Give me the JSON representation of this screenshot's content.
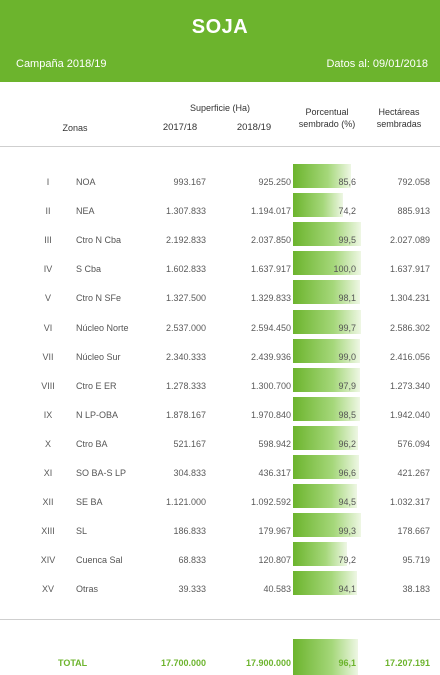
{
  "header": {
    "title": "SOJA",
    "campaign": "Campaña 2018/19",
    "date": "Datos al: 09/01/2018"
  },
  "columns": {
    "zonas": "Zonas",
    "superficie": "Superficie (Ha)",
    "year1": "2017/18",
    "year2": "2018/19",
    "porcentual_1": "Porcentual",
    "porcentual_2": "sembrado (%)",
    "hectareas_1": "Hectáreas",
    "hectareas_2": "sembradas"
  },
  "rows": [
    {
      "num": "I",
      "zona": "NOA",
      "s1718": "993.167",
      "s1819": "925.250",
      "pct": "85,6",
      "pct_value": 85.6,
      "ha": "792.058"
    },
    {
      "num": "II",
      "zona": "NEA",
      "s1718": "1.307.833",
      "s1819": "1.194.017",
      "pct": "74,2",
      "pct_value": 74.2,
      "ha": "885.913"
    },
    {
      "num": "III",
      "zona": "Ctro N Cba",
      "s1718": "2.192.833",
      "s1819": "2.037.850",
      "pct": "99,5",
      "pct_value": 99.5,
      "ha": "2.027.089"
    },
    {
      "num": "IV",
      "zona": "S Cba",
      "s1718": "1.602.833",
      "s1819": "1.637.917",
      "pct": "100,0",
      "pct_value": 100.0,
      "ha": "1.637.917"
    },
    {
      "num": "V",
      "zona": "Ctro N SFe",
      "s1718": "1.327.500",
      "s1819": "1.329.833",
      "pct": "98,1",
      "pct_value": 98.1,
      "ha": "1.304.231"
    },
    {
      "num": "VI",
      "zona": "Núcleo Norte",
      "s1718": "2.537.000",
      "s1819": "2.594.450",
      "pct": "99,7",
      "pct_value": 99.7,
      "ha": "2.586.302"
    },
    {
      "num": "VII",
      "zona": "Núcleo Sur",
      "s1718": "2.340.333",
      "s1819": "2.439.936",
      "pct": "99,0",
      "pct_value": 99.0,
      "ha": "2.416.056"
    },
    {
      "num": "VIII",
      "zona": "Ctro E ER",
      "s1718": "1.278.333",
      "s1819": "1.300.700",
      "pct": "97,9",
      "pct_value": 97.9,
      "ha": "1.273.340"
    },
    {
      "num": "IX",
      "zona": "N LP-OBA",
      "s1718": "1.878.167",
      "s1819": "1.970.840",
      "pct": "98,5",
      "pct_value": 98.5,
      "ha": "1.942.040"
    },
    {
      "num": "X",
      "zona": "Ctro BA",
      "s1718": "521.167",
      "s1819": "598.942",
      "pct": "96,2",
      "pct_value": 96.2,
      "ha": "576.094"
    },
    {
      "num": "XI",
      "zona": "SO BA-S LP",
      "s1718": "304.833",
      "s1819": "436.317",
      "pct": "96,6",
      "pct_value": 96.6,
      "ha": "421.267"
    },
    {
      "num": "XII",
      "zona": "SE BA",
      "s1718": "1.121.000",
      "s1819": "1.092.592",
      "pct": "94,5",
      "pct_value": 94.5,
      "ha": "1.032.317"
    },
    {
      "num": "XIII",
      "zona": "SL",
      "s1718": "186.833",
      "s1819": "179.967",
      "pct": "99,3",
      "pct_value": 99.3,
      "ha": "178.667"
    },
    {
      "num": "XIV",
      "zona": "Cuenca Sal",
      "s1718": "68.833",
      "s1819": "120.807",
      "pct": "79,2",
      "pct_value": 79.2,
      "ha": "95.719"
    },
    {
      "num": "XV",
      "zona": "Otras",
      "s1718": "39.333",
      "s1819": "40.583",
      "pct": "94,1",
      "pct_value": 94.1,
      "ha": "38.183"
    }
  ],
  "total": {
    "label": "TOTAL",
    "s1718": "17.700.000",
    "s1819": "17.900.000",
    "pct": "96,1",
    "pct_value": 96.1,
    "ha": "17.207.191"
  },
  "colors": {
    "accent": "#6cb42d"
  }
}
